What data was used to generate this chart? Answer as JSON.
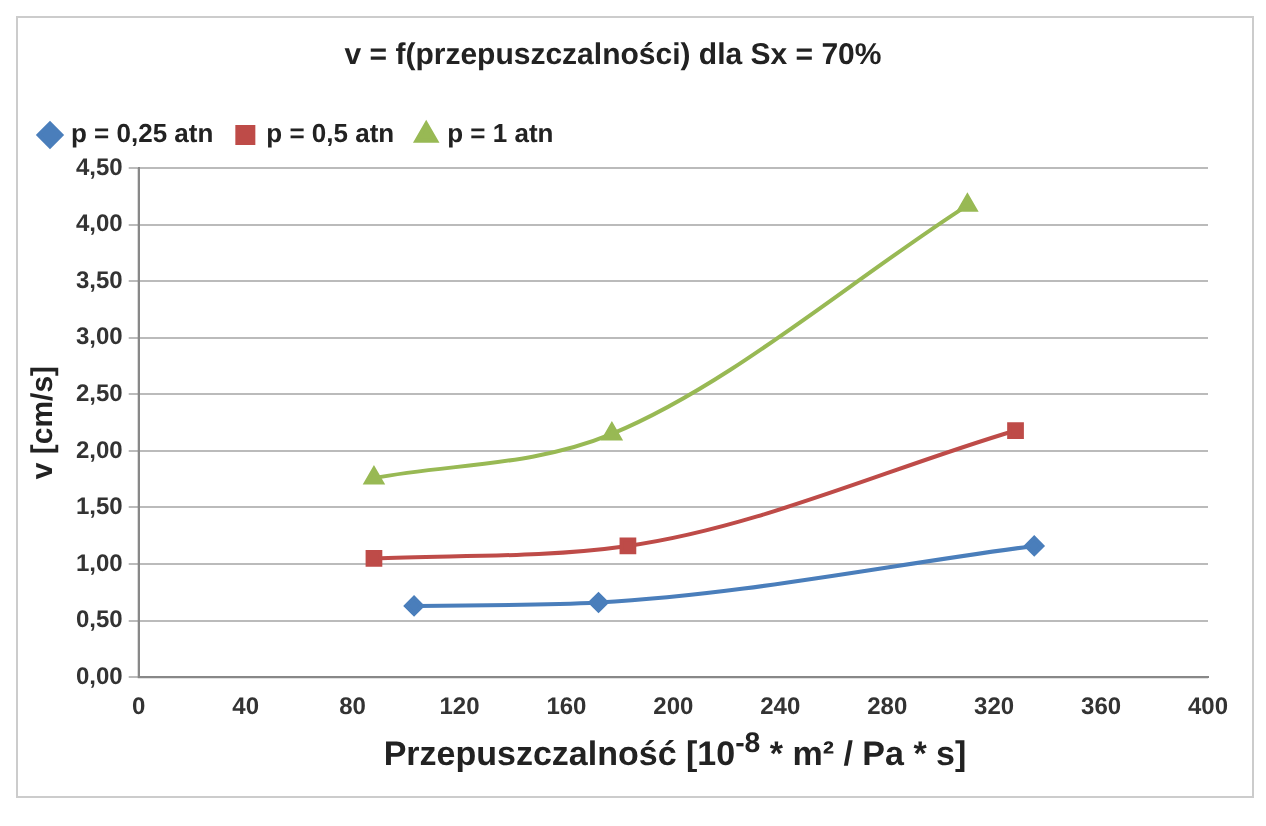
{
  "chart_data": {
    "type": "line",
    "title": "v = f(przepuszczalności) dla Sx = 70%",
    "xlabel": "Przepuszczalność [10$^{-8}$ * m² / Pa * s]",
    "ylabel": "v [cm/s]",
    "xlim": [
      0,
      400
    ],
    "xticks": [
      0,
      40,
      80,
      120,
      160,
      200,
      240,
      280,
      320,
      360,
      400
    ],
    "ylim": [
      0,
      4.5
    ],
    "yticks": [
      {
        "value": 0,
        "label": "0,00"
      },
      {
        "value": 0.5,
        "label": "0,50"
      },
      {
        "value": 1,
        "label": "1,00"
      },
      {
        "value": 1.5,
        "label": "1,50"
      },
      {
        "value": 2,
        "label": "2,00"
      },
      {
        "value": 2.5,
        "label": "2,50"
      },
      {
        "value": 3,
        "label": "3,00"
      },
      {
        "value": 3.5,
        "label": "3,50"
      },
      {
        "value": 4,
        "label": "4,00"
      },
      {
        "value": 4.5,
        "label": "4,50"
      }
    ],
    "grid": "y",
    "legend": "top left",
    "series": [
      {
        "name": "p = 0,25 atn",
        "color": "#4a7ebb",
        "marker": "diamond",
        "x": [
          103,
          172,
          335
        ],
        "values": [
          0.63,
          0.66,
          1.16
        ]
      },
      {
        "name": "p = 0,5 atn",
        "color": "#be4b48",
        "marker": "square",
        "x": [
          88,
          183,
          328
        ],
        "values": [
          1.05,
          1.16,
          2.18
        ]
      },
      {
        "name": "p = 1 atn",
        "color": "#98b954",
        "marker": "triangle",
        "x": [
          88,
          177,
          310
        ],
        "values": [
          1.76,
          2.15,
          4.17
        ]
      }
    ]
  }
}
